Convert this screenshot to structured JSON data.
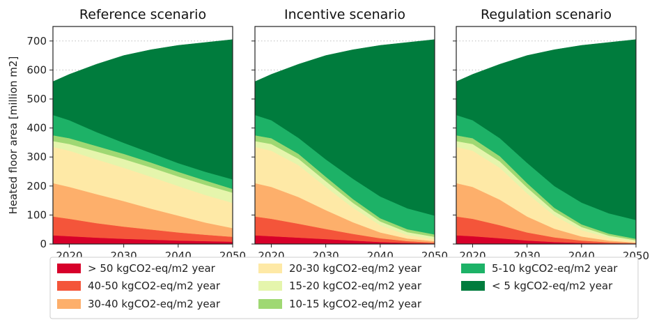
{
  "chart_data": {
    "type": "area",
    "stacked": true,
    "ylabel": "Heated floor area [million m2]",
    "ylim": [
      0,
      750
    ],
    "yticks": [
      0,
      100,
      200,
      300,
      400,
      500,
      600,
      700
    ],
    "xlim": [
      2017,
      2050
    ],
    "xticks": [
      2020,
      2030,
      2040,
      2050
    ],
    "grid": "horizontal dotted",
    "legend_position": "bottom",
    "x": [
      2017,
      2020,
      2025,
      2030,
      2035,
      2040,
      2045,
      2050
    ],
    "total_values": [
      560,
      585,
      620,
      650,
      670,
      685,
      695,
      705
    ],
    "categories": [
      {
        "name": "> 50 kgCO2-eq/m2 year",
        "color": "#d7002a"
      },
      {
        "name": "40-50 kgCO2-eq/m2 year",
        "color": "#f4553a"
      },
      {
        "name": "30-40 kgCO2-eq/m2 year",
        "color": "#fdaf6b"
      },
      {
        "name": "20-30 kgCO2-eq/m2 year",
        "color": "#fee9a6"
      },
      {
        "name": "15-20 kgCO2-eq/m2 year",
        "color": "#e5f5ac"
      },
      {
        "name": "10-15 kgCO2-eq/m2 year",
        "color": "#9fd873"
      },
      {
        "name": "5-10 kgCO2-eq/m2 year",
        "color": "#1db267"
      },
      {
        "name": "< 5 kgCO2-eq/m2 year",
        "color": "#007c3d"
      }
    ],
    "panels": [
      {
        "title": "Reference scenario",
        "series": [
          {
            "name": "> 50 kgCO2-eq/m2 year",
            "values": [
              30,
              27,
              22,
              18,
              15,
              12,
              10,
              8
            ]
          },
          {
            "name": "40-50 kgCO2-eq/m2 year",
            "values": [
              65,
              60,
              50,
              42,
              35,
              28,
              22,
              17
            ]
          },
          {
            "name": "30-40 kgCO2-eq/m2 year",
            "values": [
              115,
              110,
              100,
              88,
              72,
              58,
              42,
              30
            ]
          },
          {
            "name": "20-30 kgCO2-eq/m2 year",
            "values": [
              125,
              125,
              120,
              115,
              110,
              102,
              95,
              87
            ]
          },
          {
            "name": "15-20 kgCO2-eq/m2 year",
            "values": [
              20,
              23,
              27,
              30,
              32,
              33,
              35,
              35
            ]
          },
          {
            "name": "10-15 kgCO2-eq/m2 year",
            "values": [
              20,
              20,
              19,
              18,
              17,
              16,
              15,
              13
            ]
          },
          {
            "name": "5-10 kgCO2-eq/m2 year",
            "values": [
              70,
              62,
              48,
              38,
              33,
              30,
              30,
              33
            ]
          },
          {
            "name": "< 5 kgCO2-eq/m2 year",
            "values": [
              115,
              158,
              234,
              301,
              356,
              406,
              446,
              482
            ]
          }
        ]
      },
      {
        "title": "Incentive scenario",
        "series": [
          {
            "name": "> 50 kgCO2-eq/m2 year",
            "values": [
              30,
              27,
              22,
              17,
              12,
              7,
              4,
              2
            ]
          },
          {
            "name": "40-50 kgCO2-eq/m2 year",
            "values": [
              65,
              60,
              48,
              35,
              23,
              13,
              6,
              3
            ]
          },
          {
            "name": "30-40 kgCO2-eq/m2 year",
            "values": [
              115,
              110,
              92,
              65,
              40,
              20,
              9,
              5
            ]
          },
          {
            "name": "20-30 kgCO2-eq/m2 year",
            "values": [
              125,
              125,
              110,
              80,
              50,
              25,
              12,
              7
            ]
          },
          {
            "name": "15-20 kgCO2-eq/m2 year",
            "values": [
              20,
              23,
              22,
              20,
              17,
              13,
              10,
              8
            ]
          },
          {
            "name": "10-15 kgCO2-eq/m2 year",
            "values": [
              20,
              20,
              17,
              15,
              13,
              11,
              10,
              8
            ]
          },
          {
            "name": "5-10 kgCO2-eq/m2 year",
            "values": [
              70,
              62,
              55,
              60,
              70,
              75,
              72,
              65
            ]
          },
          {
            "name": "< 5 kgCO2-eq/m2 year",
            "values": [
              115,
              158,
              254,
              358,
              445,
              521,
              572,
              607
            ]
          }
        ]
      },
      {
        "title": "Regulation scenario",
        "series": [
          {
            "name": "> 50 kgCO2-eq/m2 year",
            "values": [
              30,
              27,
              20,
              12,
              7,
              4,
              2,
              1
            ]
          },
          {
            "name": "40-50 kgCO2-eq/m2 year",
            "values": [
              65,
              60,
              45,
              28,
              16,
              8,
              4,
              2
            ]
          },
          {
            "name": "30-40 kgCO2-eq/m2 year",
            "values": [
              115,
              110,
              88,
              55,
              30,
              14,
              6,
              2
            ]
          },
          {
            "name": "20-30 kgCO2-eq/m2 year",
            "values": [
              125,
              125,
              110,
              80,
              45,
              22,
              10,
              4
            ]
          },
          {
            "name": "15-20 kgCO2-eq/m2 year",
            "values": [
              20,
              23,
              22,
              20,
              15,
              11,
              7,
              4
            ]
          },
          {
            "name": "10-15 kgCO2-eq/m2 year",
            "values": [
              20,
              20,
              18,
              15,
              12,
              9,
              7,
              5
            ]
          },
          {
            "name": "5-10 kgCO2-eq/m2 year",
            "values": [
              70,
              62,
              62,
              70,
              75,
              75,
              70,
              65
            ]
          },
          {
            "name": "< 5 kgCO2-eq/m2 year",
            "values": [
              115,
              158,
              255,
              370,
              470,
              542,
              589,
              622
            ]
          }
        ]
      }
    ]
  }
}
